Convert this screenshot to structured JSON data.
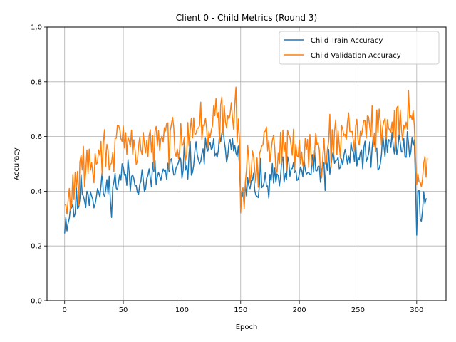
{
  "chart_data": {
    "type": "line",
    "title": "Client 0 - Child Metrics (Round 3)",
    "xlabel": "Epoch",
    "ylabel": "Accuracy",
    "xlim": [
      -15,
      325
    ],
    "ylim": [
      0.0,
      1.0
    ],
    "xticks": [
      0,
      50,
      100,
      150,
      200,
      250,
      300
    ],
    "xtick_labels": [
      "0",
      "50",
      "100",
      "150",
      "200",
      "250",
      "300"
    ],
    "yticks": [
      0.0,
      0.2,
      0.4,
      0.6,
      0.8,
      1.0
    ],
    "ytick_labels": [
      "0.0",
      "0.2",
      "0.4",
      "0.6",
      "0.8",
      "1.0"
    ],
    "grid": true,
    "legend_position": "top-right",
    "series": [
      {
        "name": "Child Train Accuracy",
        "color": "#1f77b4",
        "keypoints": [
          [
            0,
            0.29
          ],
          [
            3,
            0.3
          ],
          [
            6,
            0.36
          ],
          [
            9,
            0.33
          ],
          [
            12,
            0.37
          ],
          [
            15,
            0.41
          ],
          [
            18,
            0.38
          ],
          [
            22,
            0.41
          ],
          [
            26,
            0.37
          ],
          [
            30,
            0.4
          ],
          [
            35,
            0.41
          ],
          [
            40,
            0.4
          ],
          [
            45,
            0.44
          ],
          [
            50,
            0.47
          ],
          [
            55,
            0.44
          ],
          [
            60,
            0.45
          ],
          [
            65,
            0.45
          ],
          [
            70,
            0.42
          ],
          [
            75,
            0.46
          ],
          [
            80,
            0.45
          ],
          [
            85,
            0.46
          ],
          [
            90,
            0.47
          ],
          [
            95,
            0.46
          ],
          [
            100,
            0.5
          ],
          [
            105,
            0.51
          ],
          [
            110,
            0.52
          ],
          [
            115,
            0.53
          ],
          [
            120,
            0.53
          ],
          [
            125,
            0.54
          ],
          [
            130,
            0.56
          ],
          [
            135,
            0.57
          ],
          [
            140,
            0.58
          ],
          [
            145,
            0.6
          ],
          [
            148,
            0.58
          ],
          [
            150,
            0.34
          ],
          [
            153,
            0.37
          ],
          [
            156,
            0.42
          ],
          [
            160,
            0.41
          ],
          [
            165,
            0.42
          ],
          [
            170,
            0.42
          ],
          [
            175,
            0.43
          ],
          [
            180,
            0.44
          ],
          [
            185,
            0.45
          ],
          [
            190,
            0.46
          ],
          [
            195,
            0.46
          ],
          [
            200,
            0.47
          ],
          [
            205,
            0.47
          ],
          [
            210,
            0.47
          ],
          [
            215,
            0.47
          ],
          [
            220,
            0.48
          ],
          [
            225,
            0.48
          ],
          [
            230,
            0.5
          ],
          [
            235,
            0.51
          ],
          [
            240,
            0.52
          ],
          [
            245,
            0.53
          ],
          [
            250,
            0.53
          ],
          [
            255,
            0.54
          ],
          [
            260,
            0.54
          ],
          [
            265,
            0.55
          ],
          [
            270,
            0.55
          ],
          [
            275,
            0.56
          ],
          [
            280,
            0.57
          ],
          [
            285,
            0.57
          ],
          [
            290,
            0.58
          ],
          [
            295,
            0.57
          ],
          [
            298,
            0.56
          ],
          [
            300,
            0.33
          ],
          [
            303,
            0.34
          ],
          [
            306,
            0.36
          ],
          [
            309,
            0.38
          ]
        ],
        "noise": 0.035,
        "seed": 11
      },
      {
        "name": "Child Validation Accuracy",
        "color": "#ff7f0e",
        "keypoints": [
          [
            0,
            0.32
          ],
          [
            3,
            0.34
          ],
          [
            6,
            0.4
          ],
          [
            9,
            0.44
          ],
          [
            12,
            0.44
          ],
          [
            15,
            0.46
          ],
          [
            18,
            0.52
          ],
          [
            22,
            0.48
          ],
          [
            26,
            0.49
          ],
          [
            30,
            0.52
          ],
          [
            35,
            0.56
          ],
          [
            40,
            0.55
          ],
          [
            45,
            0.55
          ],
          [
            50,
            0.58
          ],
          [
            55,
            0.56
          ],
          [
            60,
            0.56
          ],
          [
            65,
            0.57
          ],
          [
            70,
            0.57
          ],
          [
            75,
            0.56
          ],
          [
            80,
            0.58
          ],
          [
            85,
            0.59
          ],
          [
            90,
            0.6
          ],
          [
            95,
            0.59
          ],
          [
            100,
            0.61
          ],
          [
            105,
            0.62
          ],
          [
            110,
            0.63
          ],
          [
            115,
            0.63
          ],
          [
            120,
            0.64
          ],
          [
            125,
            0.65
          ],
          [
            130,
            0.66
          ],
          [
            135,
            0.66
          ],
          [
            140,
            0.68
          ],
          [
            145,
            0.69
          ],
          [
            148,
            0.66
          ],
          [
            150,
            0.35
          ],
          [
            153,
            0.42
          ],
          [
            156,
            0.48
          ],
          [
            160,
            0.5
          ],
          [
            165,
            0.52
          ],
          [
            170,
            0.54
          ],
          [
            175,
            0.56
          ],
          [
            180,
            0.56
          ],
          [
            185,
            0.56
          ],
          [
            190,
            0.55
          ],
          [
            195,
            0.56
          ],
          [
            200,
            0.56
          ],
          [
            205,
            0.57
          ],
          [
            210,
            0.56
          ],
          [
            215,
            0.55
          ],
          [
            220,
            0.56
          ],
          [
            225,
            0.57
          ],
          [
            230,
            0.58
          ],
          [
            235,
            0.6
          ],
          [
            240,
            0.63
          ],
          [
            245,
            0.64
          ],
          [
            250,
            0.62
          ],
          [
            255,
            0.63
          ],
          [
            260,
            0.62
          ],
          [
            265,
            0.61
          ],
          [
            270,
            0.62
          ],
          [
            275,
            0.63
          ],
          [
            280,
            0.65
          ],
          [
            285,
            0.65
          ],
          [
            290,
            0.66
          ],
          [
            295,
            0.69
          ],
          [
            298,
            0.66
          ],
          [
            300,
            0.44
          ],
          [
            303,
            0.45
          ],
          [
            306,
            0.46
          ],
          [
            309,
            0.5
          ]
        ],
        "noise": 0.045,
        "seed": 29
      }
    ]
  }
}
